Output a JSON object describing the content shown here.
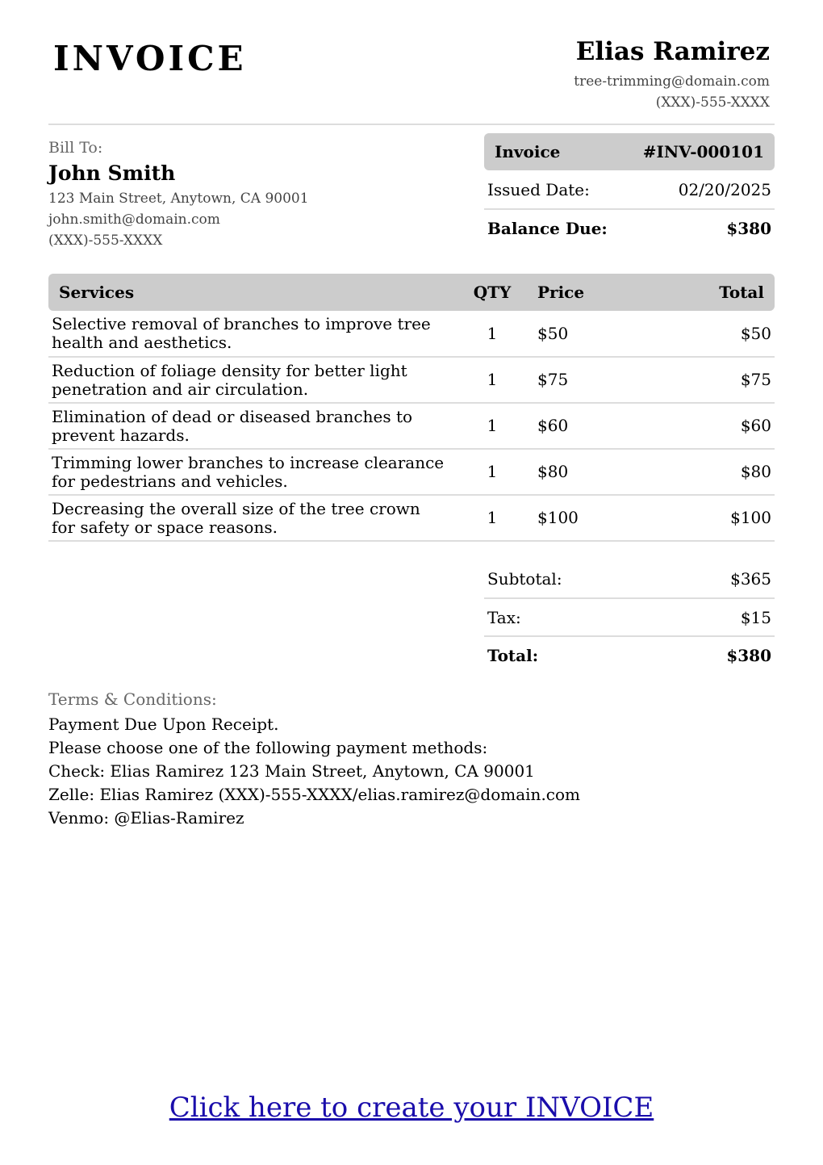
{
  "header": {
    "title": "INVOICE",
    "from_name": "Elias Ramirez",
    "from_email": "tree-trimming@domain.com",
    "from_phone": "(XXX)-555-XXXX"
  },
  "bill_to": {
    "label": "Bill To:",
    "name": "John Smith",
    "address": "123 Main Street, Anytown, CA 90001",
    "email": "john.smith@domain.com",
    "phone": "(XXX)-555-XXXX"
  },
  "meta": {
    "invoice_label": "Invoice",
    "invoice_number": "#INV-000101",
    "issued_label": "Issued Date:",
    "issued_date": "02/20/2025",
    "balance_label": "Balance Due:",
    "balance": "$380"
  },
  "table": {
    "headers": [
      "Services",
      "QTY",
      "Price",
      "Total"
    ],
    "rows": [
      [
        "Selective removal of branches to improve tree health and aesthetics.",
        "1",
        "$50",
        "$50"
      ],
      [
        "Reduction of foliage density for better light penetration and air circulation.",
        "1",
        "$75",
        "$75"
      ],
      [
        "Elimination of dead or diseased branches to prevent hazards.",
        "1",
        "$60",
        "$60"
      ],
      [
        "Trimming lower branches to increase clearance for pedestrians and vehicles.",
        "1",
        "$80",
        "$80"
      ],
      [
        "Decreasing the overall size of the tree crown for safety or space reasons.",
        "1",
        "$100",
        "$100"
      ]
    ]
  },
  "totals": {
    "subtotal_label": "Subtotal:",
    "subtotal": "$365",
    "tax_label": "Tax:",
    "tax": "$15",
    "total_label": "Total:",
    "total": "$380"
  },
  "terms": {
    "label": "Terms & Conditions:",
    "lines": [
      "Payment Due Upon Receipt.",
      "Please choose one of the following payment methods:",
      "Check: Elias Ramirez 123 Main Street, Anytown, CA 90001",
      "Zelle: Elias Ramirez (XXX)-555-XXXX/elias.ramirez@domain.com",
      "Venmo: @Elias-Ramirez"
    ]
  },
  "cta": "Click here to create your INVOICE"
}
